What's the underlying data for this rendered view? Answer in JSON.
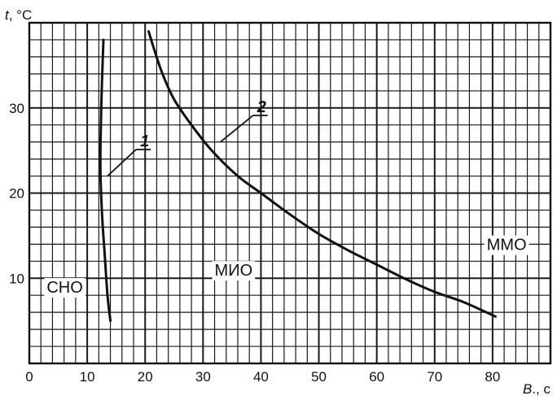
{
  "chart_data": {
    "type": "line",
    "x_axis": {
      "label_var": "B",
      "label_unit": "., c",
      "range": [
        0,
        90
      ],
      "ticks": [
        0,
        10,
        20,
        30,
        40,
        50,
        60,
        70,
        80
      ],
      "tick_labels": [
        "0",
        "10",
        "20",
        "30",
        "40",
        "50",
        "60",
        "70",
        "80"
      ],
      "grid_step": 2
    },
    "y_axis": {
      "label_var": "t",
      "label_unit": ", °C",
      "range": [
        0,
        40
      ],
      "ticks": [
        10,
        20,
        30
      ],
      "tick_labels": [
        "10",
        "20",
        "30"
      ],
      "grid_step": 2
    },
    "grid": true,
    "series": [
      {
        "name": "1",
        "color": "#111111",
        "points": [
          [
            12.8,
            38
          ],
          [
            12.5,
            32
          ],
          [
            12.3,
            26
          ],
          [
            12.3,
            22
          ],
          [
            12.6,
            17
          ],
          [
            13.0,
            13
          ],
          [
            13.5,
            8
          ],
          [
            14.0,
            5
          ]
        ]
      },
      {
        "name": "2",
        "color": "#111111",
        "points": [
          [
            20.6,
            39
          ],
          [
            21.5,
            37
          ],
          [
            23.0,
            34
          ],
          [
            25.0,
            31
          ],
          [
            28.0,
            28
          ],
          [
            31.5,
            25
          ],
          [
            36.0,
            22
          ],
          [
            40.0,
            20
          ],
          [
            45.0,
            17.5
          ],
          [
            50.0,
            15.2
          ],
          [
            55.0,
            13.3
          ],
          [
            60.0,
            11.6
          ],
          [
            65.0,
            9.9
          ],
          [
            70.0,
            8.4
          ],
          [
            75.0,
            7.2
          ],
          [
            80.5,
            5.5
          ]
        ]
      }
    ],
    "curve_labels": [
      {
        "text": "1",
        "x": 19.0,
        "y": 25.5,
        "leader_to": [
          13.5,
          22
        ]
      },
      {
        "text": "2",
        "x": 39.2,
        "y": 29.5,
        "leader_to": [
          33.0,
          26.0
        ]
      }
    ],
    "regions": [
      {
        "text": "СНО",
        "x": 3,
        "y": 8.3
      },
      {
        "text": "МИО",
        "x": 32,
        "y": 10.3
      },
      {
        "text": "ММО",
        "x": 79,
        "y": 13.3
      }
    ]
  }
}
